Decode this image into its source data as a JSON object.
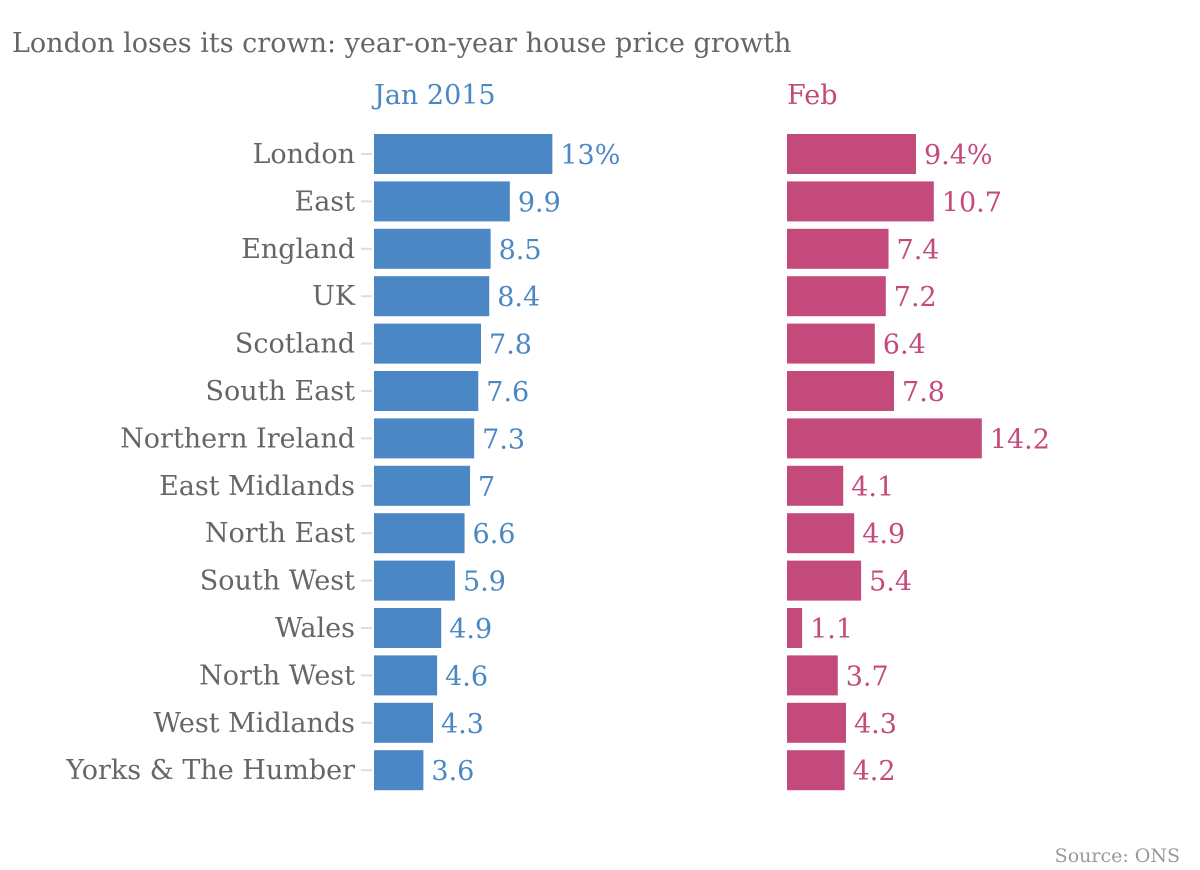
{
  "chart_data": {
    "type": "bar",
    "orientation": "horizontal",
    "title": "London loses its crown: year-on-year house price growth",
    "source": "Source: ONS",
    "categories": [
      "London",
      "East",
      "England",
      "UK",
      "Scotland",
      "South East",
      "Northern Ireland",
      "East Midlands",
      "North East",
      "South West",
      "Wales",
      "North West",
      "West Midlands",
      "Yorks & The Humber"
    ],
    "series": [
      {
        "name": "Jan 2015",
        "color": "#4a87c4",
        "values": [
          13,
          9.9,
          8.5,
          8.4,
          7.8,
          7.6,
          7.3,
          7,
          6.6,
          5.9,
          4.9,
          4.6,
          4.3,
          3.6
        ],
        "labels": [
          "13%",
          "9.9",
          "8.5",
          "8.4",
          "7.8",
          "7.6",
          "7.3",
          "7",
          "6.6",
          "5.9",
          "4.9",
          "4.6",
          "4.3",
          "3.6"
        ]
      },
      {
        "name": "Feb",
        "color": "#c44a7c",
        "values": [
          9.4,
          10.7,
          7.4,
          7.2,
          6.4,
          7.8,
          14.2,
          4.1,
          4.9,
          5.4,
          1.1,
          3.7,
          4.3,
          4.2
        ],
        "labels": [
          "9.4%",
          "10.7",
          "7.4",
          "7.2",
          "6.4",
          "7.8",
          "14.2",
          "4.1",
          "4.9",
          "5.4",
          "1.1",
          "3.7",
          "4.3",
          "4.2"
        ]
      }
    ],
    "xlabel": "",
    "ylabel": "",
    "unit": "%",
    "grid": false,
    "legend": "none"
  }
}
